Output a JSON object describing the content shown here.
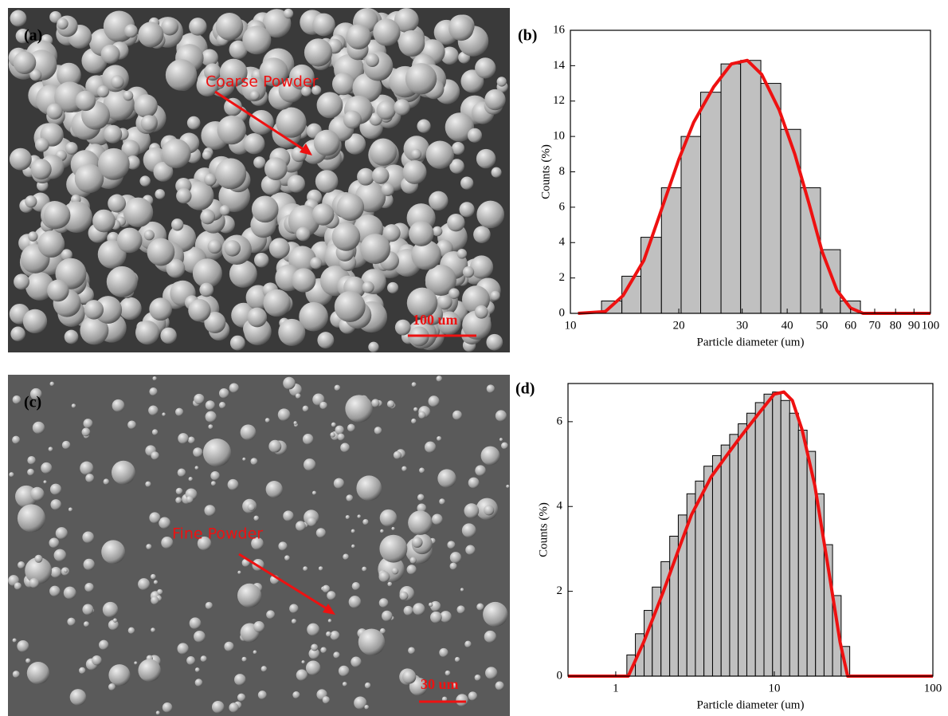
{
  "images": [
    {
      "label": "(a)",
      "annotation": "Coarse Powder",
      "scale_bar": "100 um"
    },
    {
      "label": "(c)",
      "annotation": "Fine Powder",
      "scale_bar": "30 um"
    }
  ],
  "chart_data": [
    {
      "type": "histogram",
      "panel_label": "(b)",
      "x_label": "Particle diameter (um)",
      "y_label": "Counts (%)",
      "log_x": true,
      "color": "#c0c0c0",
      "bins": [
        12.2,
        13.9,
        15.7,
        17.9,
        20.3,
        23.0,
        26.2,
        29.7,
        33.8,
        38.4,
        43.6,
        49.5,
        56.2,
        63.9,
        72.5,
        82.4,
        93.6,
        100
      ],
      "counts": [
        0.7,
        2.1,
        4.3,
        7.1,
        10.0,
        12.5,
        14.1,
        14.3,
        13.0,
        10.4,
        7.1,
        3.6,
        0.7,
        0.05,
        0.05,
        0.05,
        0.05
      ],
      "fit": {
        "color": "#ee1111",
        "x": [
          10.5,
          12.5,
          14,
          16,
          18,
          20,
          22,
          25,
          28,
          31,
          34,
          38,
          42,
          46,
          50,
          55,
          60,
          65,
          100
        ],
        "values": [
          0,
          0.1,
          1,
          3,
          6,
          8.7,
          10.8,
          12.8,
          14.1,
          14.3,
          13.5,
          11.5,
          9,
          6.2,
          3.5,
          1.3,
          0.3,
          0,
          0
        ]
      },
      "xlim": [
        10,
        100
      ],
      "xticks": [
        10,
        20,
        30,
        40,
        50,
        60,
        70,
        80,
        90,
        100
      ],
      "ylim": [
        0,
        16
      ],
      "yticks": [
        0,
        2,
        4,
        6,
        8,
        10,
        12,
        14,
        16
      ]
    },
    {
      "type": "histogram",
      "panel_label": "(d)",
      "x_label": "Particle diameter (um)",
      "y_label": "Counts (%)",
      "log_x": true,
      "color": "#c0c0c0",
      "bins": [
        1.175,
        1.33,
        1.51,
        1.7,
        1.93,
        2.19,
        2.48,
        2.81,
        3.18,
        3.6,
        4.08,
        4.62,
        5.23,
        5.92,
        6.71,
        7.6,
        8.61,
        9.75,
        11.0,
        12.5,
        14.2,
        16.1,
        18.2,
        20.6,
        23.3,
        26.4,
        29.9
      ],
      "counts": [
        0.5,
        1.0,
        1.55,
        2.1,
        2.7,
        3.3,
        3.8,
        4.3,
        4.6,
        4.95,
        5.2,
        5.45,
        5.7,
        5.95,
        6.2,
        6.45,
        6.65,
        6.7,
        6.5,
        6.2,
        5.8,
        5.3,
        4.3,
        3.1,
        1.9,
        0.7
      ],
      "fit": {
        "color": "#ee1111",
        "x": [
          0.5,
          1.2,
          1.5,
          2,
          2.5,
          3,
          4,
          5,
          6,
          8,
          10,
          11.5,
          13,
          15,
          18,
          22,
          26,
          29,
          100
        ],
        "values": [
          0,
          0,
          0.8,
          2.0,
          3.0,
          3.8,
          4.7,
          5.2,
          5.6,
          6.2,
          6.65,
          6.7,
          6.5,
          5.8,
          4.5,
          2.5,
          0.8,
          0,
          0
        ]
      },
      "xlim": [
        0.5,
        100
      ],
      "xticks": [
        1,
        10,
        100
      ],
      "ylim": [
        0,
        6.9
      ],
      "yticks": [
        0,
        2,
        4,
        6
      ]
    }
  ]
}
